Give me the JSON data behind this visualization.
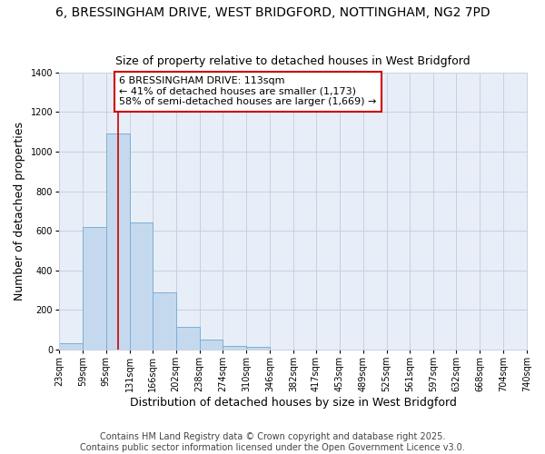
{
  "title_line1": "6, BRESSINGHAM DRIVE, WEST BRIDGFORD, NOTTINGHAM, NG2 7PD",
  "title_line2": "Size of property relative to detached houses in West Bridgford",
  "xlabel": "Distribution of detached houses by size in West Bridgford",
  "ylabel": "Number of detached properties",
  "bin_edges": [
    23,
    59,
    95,
    131,
    166,
    202,
    238,
    274,
    310,
    346,
    382,
    417,
    453,
    489,
    525,
    561,
    597,
    632,
    668,
    704,
    740
  ],
  "bar_heights": [
    30,
    620,
    1090,
    640,
    290,
    115,
    50,
    20,
    15,
    0,
    0,
    0,
    0,
    0,
    0,
    0,
    0,
    0,
    0,
    0
  ],
  "bar_color": "#c5d9ee",
  "bar_edgecolor": "#7bafd4",
  "background_color": "#ffffff",
  "plot_bg_color": "#e8eef8",
  "grid_color": "#c8d0e0",
  "property_size": 113,
  "red_line_color": "#cc0000",
  "annotation_line1": "6 BRESSINGHAM DRIVE: 113sqm",
  "annotation_line2": "← 41% of detached houses are smaller (1,173)",
  "annotation_line3": "58% of semi-detached houses are larger (1,669) →",
  "annotation_box_color": "#ffffff",
  "annotation_box_edgecolor": "#cc0000",
  "ylim": [
    0,
    1400
  ],
  "yticks": [
    0,
    200,
    400,
    600,
    800,
    1000,
    1200,
    1400
  ],
  "footer_line1": "Contains HM Land Registry data © Crown copyright and database right 2025.",
  "footer_line2": "Contains public sector information licensed under the Open Government Licence v3.0.",
  "title_fontsize": 10,
  "subtitle_fontsize": 9,
  "axis_label_fontsize": 9,
  "tick_fontsize": 7,
  "annotation_fontsize": 8,
  "footer_fontsize": 7
}
